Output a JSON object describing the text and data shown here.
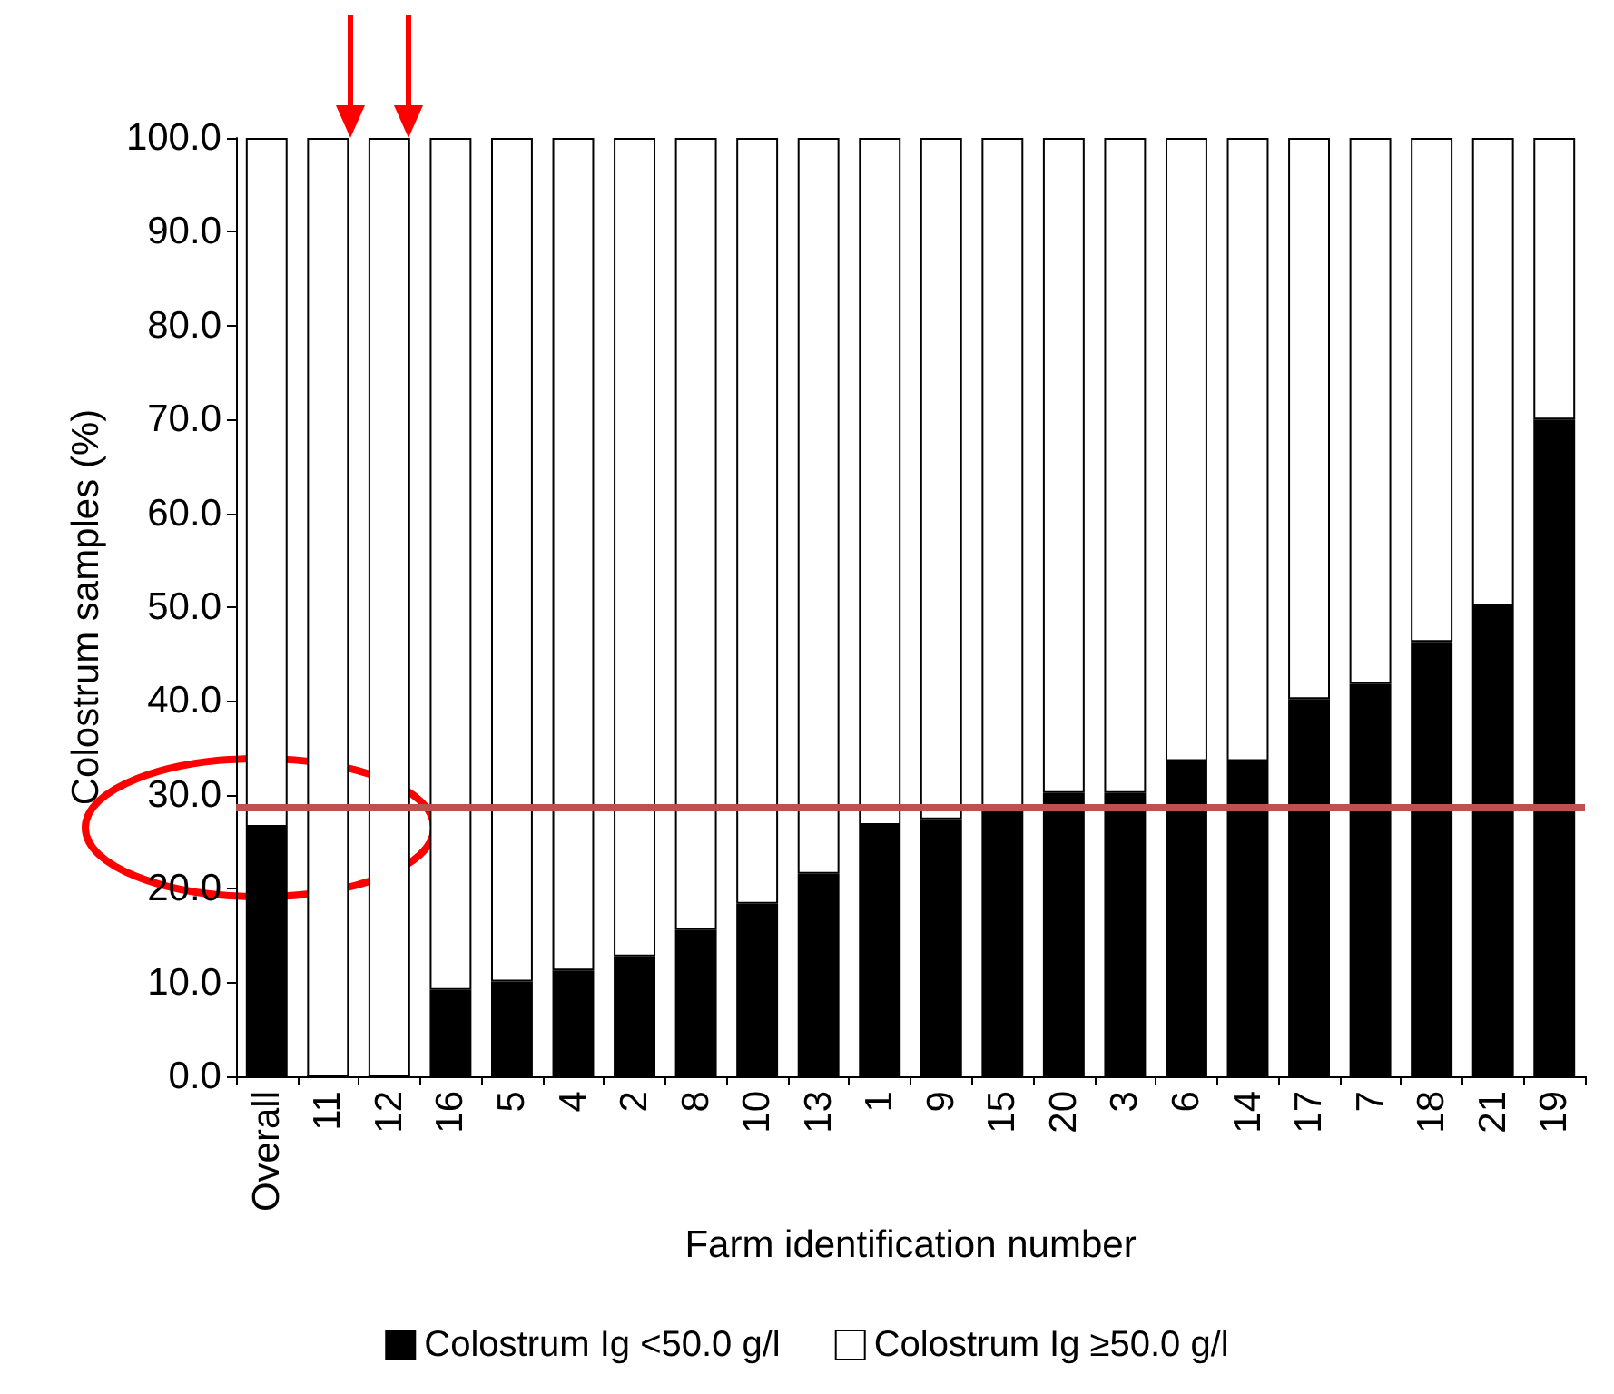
{
  "chart_data": {
    "type": "bar",
    "stacked": true,
    "xlabel": "Farm identification number",
    "ylabel": "Colostrum samples (%)",
    "categories": [
      "Overall",
      "11",
      "12",
      "16",
      "5",
      "4",
      "2",
      "8",
      "10",
      "13",
      "1",
      "9",
      "15",
      "20",
      "3",
      "6",
      "14",
      "17",
      "7",
      "18",
      "21",
      "19"
    ],
    "series": [
      {
        "name": "Colostrum Ig <50.0 g/l",
        "color": "#000000",
        "values": [
          26.6,
          0,
          0,
          9.2,
          10.1,
          11.3,
          12.8,
          15.6,
          18.4,
          21.6,
          26.8,
          27.4,
          28.6,
          30.2,
          30.2,
          33.6,
          33.6,
          40.2,
          41.8,
          46.3,
          50.1,
          70.0
        ]
      },
      {
        "name": "Colostrum Ig ≥50.0 g/l",
        "color": "#ffffff",
        "values": [
          73.4,
          100,
          100,
          90.8,
          89.9,
          88.7,
          87.2,
          84.4,
          81.6,
          78.4,
          73.2,
          72.6,
          71.4,
          69.8,
          69.8,
          66.4,
          66.4,
          59.8,
          58.2,
          53.7,
          49.9,
          30.0
        ]
      }
    ],
    "ylim": [
      0,
      100
    ],
    "yticks": [
      {
        "value": 0,
        "label": "0.0"
      },
      {
        "value": 10,
        "label": "10.0"
      },
      {
        "value": 20,
        "label": "20.0"
      },
      {
        "value": 30,
        "label": "30.0"
      },
      {
        "value": 40,
        "label": "40.0"
      },
      {
        "value": 50,
        "label": "50.0"
      },
      {
        "value": 60,
        "label": "60.0"
      },
      {
        "value": 70,
        "label": "70.0"
      },
      {
        "value": 80,
        "label": "80.0"
      },
      {
        "value": 90,
        "label": "90.0"
      },
      {
        "value": 100,
        "label": "100.0"
      }
    ],
    "ref_lines": [
      {
        "axis": "y",
        "value": 28.7,
        "label": null,
        "color": "#c0504d"
      }
    ],
    "legend": "bottom",
    "grid": false
  }
}
